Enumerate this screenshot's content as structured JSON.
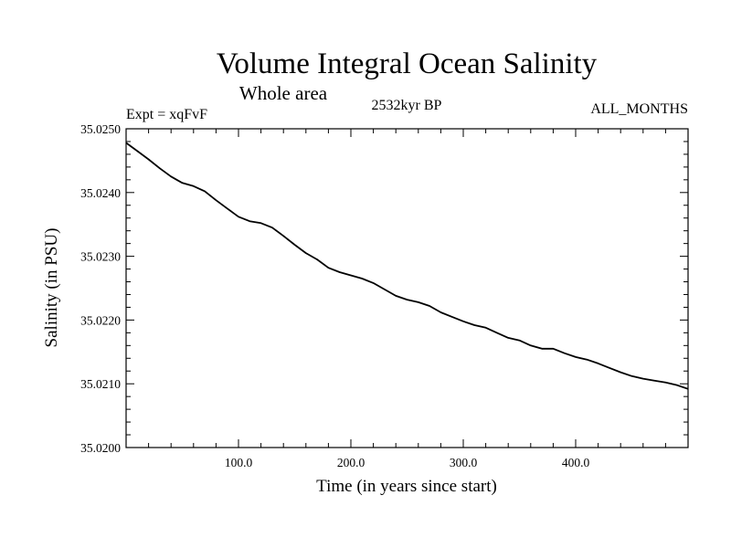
{
  "chart_data": {
    "type": "line",
    "title": "Volume Integral Ocean Salinity",
    "subtitle": "Whole area",
    "experiment": "Expt = xqFvF",
    "period": "2532kyr BP",
    "season": "ALL_MONTHS",
    "xlabel": "Time (in years since start)",
    "ylabel": "Salinity (in PSU)",
    "xlim": [
      0,
      500
    ],
    "ylim": [
      35.02,
      35.025
    ],
    "x_ticks": [
      100,
      200,
      300,
      400
    ],
    "x_tick_labels": [
      "100.0",
      "200.0",
      "300.0",
      "400.0"
    ],
    "y_ticks": [
      35.02,
      35.021,
      35.022,
      35.023,
      35.024,
      35.025
    ],
    "y_tick_labels": [
      "35.0200",
      "35.0210",
      "35.0220",
      "35.0230",
      "35.0240",
      "35.0250"
    ],
    "series": [
      {
        "name": "salinity",
        "color": "#000000",
        "x": [
          0,
          10,
          20,
          30,
          40,
          50,
          60,
          70,
          80,
          90,
          100,
          110,
          120,
          130,
          140,
          150,
          160,
          170,
          180,
          190,
          200,
          210,
          220,
          230,
          240,
          250,
          260,
          270,
          280,
          290,
          300,
          310,
          320,
          330,
          340,
          350,
          360,
          370,
          380,
          390,
          400,
          410,
          420,
          430,
          440,
          450,
          460,
          470,
          480,
          490,
          500
        ],
        "y": [
          35.02478,
          35.02465,
          35.02452,
          35.02438,
          35.02425,
          35.02415,
          35.0241,
          35.02402,
          35.02388,
          35.02375,
          35.02362,
          35.02355,
          35.02352,
          35.02345,
          35.02332,
          35.02318,
          35.02305,
          35.02295,
          35.02282,
          35.02275,
          35.0227,
          35.02265,
          35.02258,
          35.02248,
          35.02238,
          35.02232,
          35.02228,
          35.02222,
          35.02212,
          35.02205,
          35.02198,
          35.02192,
          35.02188,
          35.0218,
          35.02172,
          35.02168,
          35.0216,
          35.02155,
          35.02155,
          35.02148,
          35.02142,
          35.02138,
          35.02132,
          35.02125,
          35.02118,
          35.02112,
          35.02108,
          35.02105,
          35.02102,
          35.02098,
          35.02092
        ]
      }
    ]
  }
}
